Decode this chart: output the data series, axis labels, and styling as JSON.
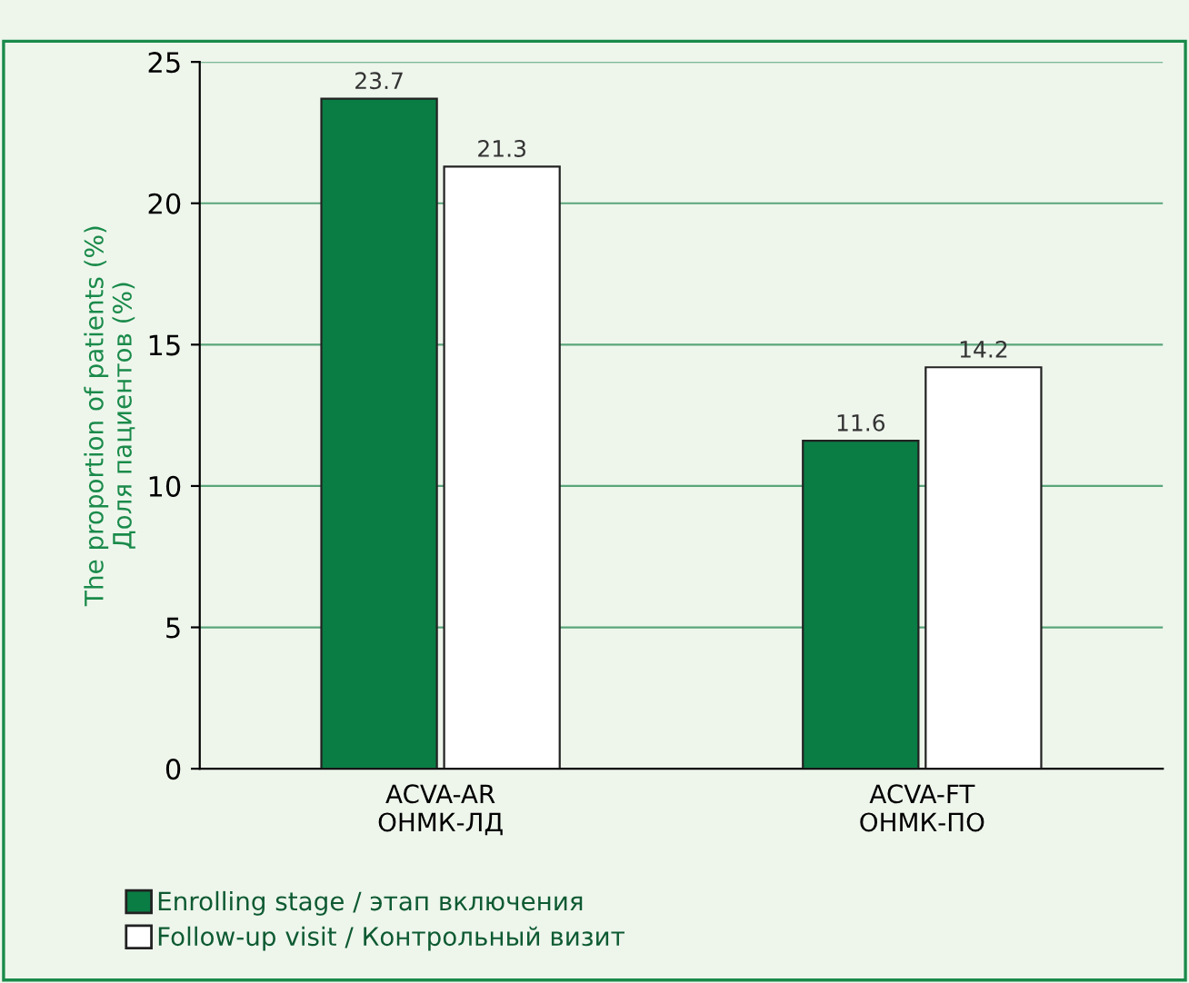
{
  "chart_data": {
    "type": "bar",
    "ylabel": "The proportion of patients (%)\nДоля пациентов (%)",
    "categories": [
      "ACVA-AR\nОНМК-ЛД",
      "ACVA-FT\nОНМК-ПО"
    ],
    "series": [
      {
        "name": "Enrolling stage / этап включения",
        "color": "#0a7d44",
        "values": [
          23.7,
          11.6
        ]
      },
      {
        "name": "Follow-up visit / Контрольный визит",
        "color": "#ffffff",
        "values": [
          21.3,
          14.2
        ]
      }
    ],
    "ylim": [
      0,
      25
    ],
    "yticks": [
      0,
      5,
      10,
      15,
      20,
      25
    ],
    "grid": "y",
    "legend": "bottom",
    "data_labels": true
  }
}
